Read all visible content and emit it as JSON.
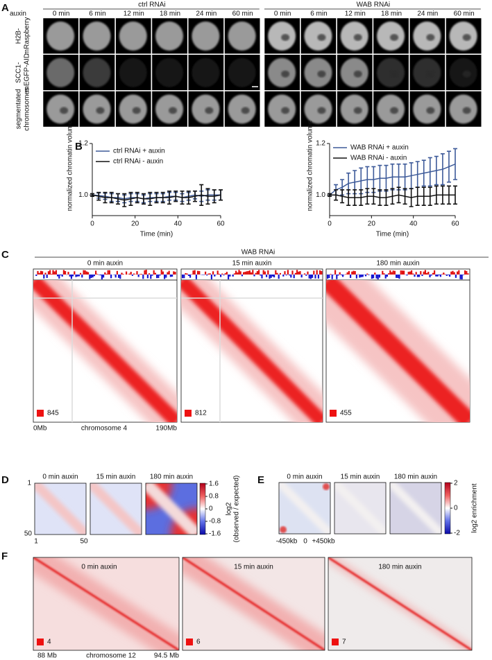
{
  "panel_a": {
    "letter": "A",
    "auxin_label": "auxin",
    "groups": [
      {
        "name": "ctrl RNAi",
        "times": [
          "0 min",
          "6 min",
          "12 min",
          "18 min",
          "24 min",
          "60 min"
        ]
      },
      {
        "name": "WAB RNAi",
        "times": [
          "0 min",
          "6 min",
          "12 min",
          "18 min",
          "24 min",
          "60 min"
        ]
      }
    ],
    "rows": [
      [
        "H2B-",
        "mRaspberry"
      ],
      [
        "SCC1-",
        "mEGFP-AID"
      ],
      [
        "segmentated",
        "chromosomes"
      ]
    ]
  },
  "panel_b": {
    "letter": "B"
  },
  "chart_data": [
    {
      "type": "line",
      "x_label": "Time (min)",
      "y_label": "normalized chromatin volume",
      "x": [
        0,
        3,
        6,
        9,
        12,
        15,
        18,
        21,
        24,
        27,
        30,
        33,
        36,
        39,
        42,
        45,
        48,
        51,
        54,
        57,
        60
      ],
      "xlim": [
        0,
        60
      ],
      "xticks": [
        0,
        20,
        40,
        60
      ],
      "ylim": [
        0.92,
        1.2
      ],
      "yticks": [
        {
          "value": 1,
          "label": "1.0"
        },
        {
          "value": 1.2,
          "label": "1.2"
        }
      ],
      "legend": "upper left",
      "series": [
        {
          "name": "ctrl RNAi + auxin",
          "color": "#3d5a99",
          "values": [
            1.0,
            0.998,
            0.995,
            0.99,
            0.99,
            0.985,
            0.99,
            0.99,
            0.985,
            0.99,
            0.99,
            0.99,
            0.995,
            0.995,
            0.99,
            0.995,
            1.0,
            0.995,
            1.0,
            1.0,
            1.0
          ],
          "errors": [
            0.005,
            0.01,
            0.012,
            0.015,
            0.015,
            0.015,
            0.015,
            0.015,
            0.015,
            0.015,
            0.015,
            0.015,
            0.015,
            0.015,
            0.015,
            0.015,
            0.015,
            0.02,
            0.02,
            0.02,
            0.02
          ]
        },
        {
          "name": "ctrl RNAi - auxin",
          "color": "#111111",
          "values": [
            1.0,
            0.995,
            0.99,
            0.99,
            0.985,
            0.98,
            0.985,
            0.99,
            0.985,
            0.985,
            0.99,
            0.99,
            0.99,
            0.995,
            0.99,
            0.99,
            0.995,
            1.0,
            0.995,
            0.995,
            1.0
          ],
          "errors": [
            0.005,
            0.015,
            0.02,
            0.02,
            0.02,
            0.025,
            0.025,
            0.02,
            0.02,
            0.025,
            0.02,
            0.02,
            0.025,
            0.02,
            0.025,
            0.025,
            0.02,
            0.04,
            0.03,
            0.025,
            0.02
          ]
        }
      ]
    },
    {
      "type": "line",
      "x_label": "Time (min)",
      "y_label": "normalized chromatin volume",
      "x": [
        0,
        3,
        6,
        9,
        12,
        15,
        18,
        21,
        24,
        27,
        30,
        33,
        36,
        39,
        42,
        45,
        48,
        51,
        54,
        57,
        60
      ],
      "xlim": [
        0,
        60
      ],
      "xticks": [
        0,
        20,
        40,
        60
      ],
      "ylim": [
        0.92,
        1.2
      ],
      "yticks": [
        {
          "value": 1,
          "label": "1.0"
        },
        {
          "value": 1.2,
          "label": "1.2"
        }
      ],
      "legend": "upper left",
      "series": [
        {
          "name": "WAB RNAi + auxin",
          "color": "#3d5a99",
          "values": [
            1.0,
            1.02,
            1.03,
            1.045,
            1.05,
            1.055,
            1.06,
            1.06,
            1.065,
            1.065,
            1.07,
            1.07,
            1.07,
            1.075,
            1.08,
            1.085,
            1.09,
            1.095,
            1.1,
            1.11,
            1.12
          ],
          "errors": [
            0.005,
            0.02,
            0.03,
            0.04,
            0.045,
            0.05,
            0.05,
            0.05,
            0.05,
            0.05,
            0.05,
            0.05,
            0.05,
            0.05,
            0.05,
            0.05,
            0.055,
            0.055,
            0.06,
            0.06,
            0.06
          ]
        },
        {
          "name": "WAB RNAi - auxin",
          "color": "#111111",
          "values": [
            1.0,
            1.0,
            0.995,
            0.99,
            0.99,
            0.99,
            0.995,
            0.995,
            0.99,
            0.99,
            0.995,
            1.0,
            0.995,
            0.99,
            0.995,
            0.995,
            0.995,
            1.0,
            1.0,
            1.0,
            1.0
          ],
          "errors": [
            0.005,
            0.02,
            0.025,
            0.03,
            0.03,
            0.03,
            0.03,
            0.03,
            0.03,
            0.03,
            0.03,
            0.03,
            0.03,
            0.035,
            0.035,
            0.035,
            0.035,
            0.035,
            0.035,
            0.035,
            0.035
          ]
        }
      ]
    }
  ],
  "panel_c": {
    "letter": "C",
    "title": "WAB RNAi",
    "maps": [
      {
        "label": "0 min auxin",
        "scale": "845"
      },
      {
        "label": "15 min auxin",
        "scale": "812"
      },
      {
        "label": "180 min auxin",
        "scale": "455"
      }
    ],
    "x_start": "0Mb",
    "x_label": "chromosome 4",
    "x_end": "190Mb"
  },
  "panel_d": {
    "letter": "D",
    "maps": [
      "0 min auxin",
      "15 min auxin",
      "180 min auxin"
    ],
    "colorbar_ticks": [
      "1.6",
      "0.8",
      "0",
      "-0.8",
      "-1.6"
    ],
    "colorbar_label": [
      "log2",
      "(observed / expected)"
    ],
    "y_start": "1",
    "y_end": "50",
    "x_start": "1",
    "x_end": "50"
  },
  "panel_e": {
    "letter": "E",
    "maps": [
      "0 min auxin",
      "15 min auxin",
      "180 min auxin"
    ],
    "colorbar_ticks": [
      "2",
      "0",
      "-2"
    ],
    "colorbar_label": "log2 enrichment",
    "x_labels": [
      "-450kb",
      "0",
      "+450kb"
    ]
  },
  "panel_f": {
    "letter": "F",
    "maps": [
      {
        "label": "0 min auxin",
        "scale": "4"
      },
      {
        "label": "15 min auxin",
        "scale": "6"
      },
      {
        "label": "180 min auxin",
        "scale": "7"
      }
    ],
    "x_start": "88 Mb",
    "x_label": "chromosome 12",
    "x_end": "94.5 Mb"
  }
}
